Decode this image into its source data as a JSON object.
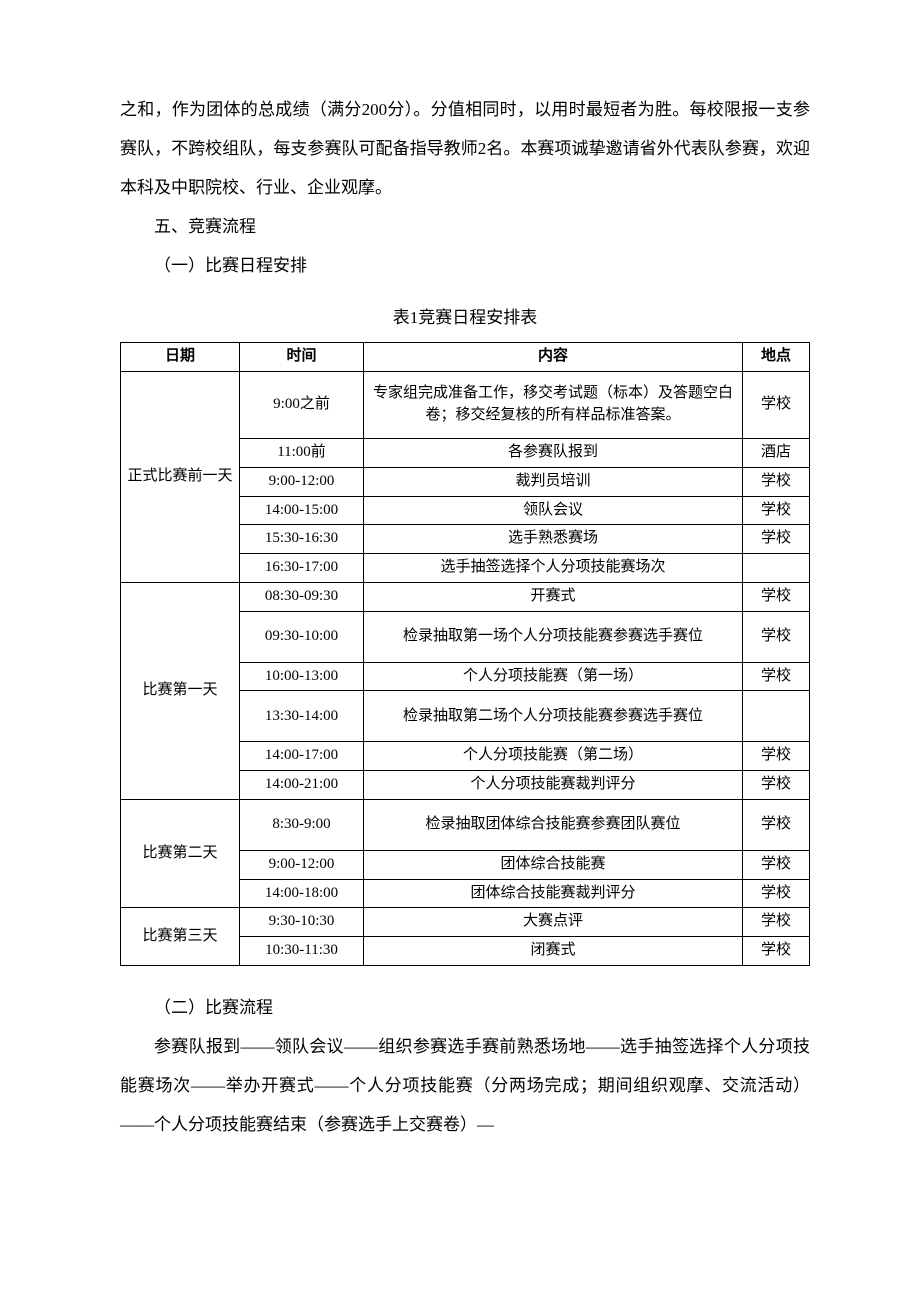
{
  "para1": "之和，作为团体的总成绩（满分200分）。分值相同时，以用时最短者为胜。每校限报一支参赛队，不跨校组队，每支参赛队可配备指导教师2名。本赛项诚挚邀请省外代表队参赛，欢迎本科及中职院校、行业、企业观摩。",
  "h1": "五、竞赛流程",
  "h2": "（一）比赛日程安排",
  "tableCaption": "表1竞赛日程安排表",
  "headers": {
    "date": "日期",
    "time": "时间",
    "content": "内容",
    "loc": "地点"
  },
  "groups": [
    {
      "date": "正式比赛前一天",
      "rows": [
        {
          "time": "9:00之前",
          "content": "专家组完成准备工作，移交考试题（标本）及答题空白卷；移交经复核的所有样品标准答案。",
          "loc": "学校",
          "cls": "tall"
        },
        {
          "time": "11:00前",
          "content": "各参赛队报到",
          "loc": "酒店"
        },
        {
          "time": "9:00-12:00",
          "content": "裁判员培训",
          "loc": "学校"
        },
        {
          "time": "14:00-15:00",
          "content": "领队会议",
          "loc": "学校"
        },
        {
          "time": "15:30-16:30",
          "content": "选手熟悉赛场",
          "loc": "学校"
        },
        {
          "time": "16:30-17:00",
          "content": "选手抽签选择个人分项技能赛场次",
          "loc": ""
        }
      ]
    },
    {
      "date": "比赛第一天",
      "rows": [
        {
          "time": "08:30-09:30",
          "content": "开赛式",
          "loc": "学校"
        },
        {
          "time": "09:30-10:00",
          "content": "检录抽取第一场个人分项技能赛参赛选手赛位",
          "loc": "学校",
          "cls": "med"
        },
        {
          "time": "10:00-13:00",
          "content": "个人分项技能赛（第一场）",
          "loc": "学校"
        },
        {
          "time": "13:30-14:00",
          "content": "检录抽取第二场个人分项技能赛参赛选手赛位",
          "loc": "",
          "cls": "med"
        },
        {
          "time": "14:00-17:00",
          "content": "个人分项技能赛（第二场）",
          "loc": "学校"
        },
        {
          "time": "14:00-21:00",
          "content": "个人分项技能赛裁判评分",
          "loc": "学校"
        }
      ]
    },
    {
      "date": "比赛第二天",
      "rows": [
        {
          "time": "8:30-9:00",
          "content": "检录抽取团体综合技能赛参赛团队赛位",
          "loc": "学校",
          "cls": "med"
        },
        {
          "time": "9:00-12:00",
          "content": "团体综合技能赛",
          "loc": "学校"
        },
        {
          "time": "14:00-18:00",
          "content": "团体综合技能赛裁判评分",
          "loc": "学校"
        }
      ]
    },
    {
      "date": "比赛第三天",
      "rows": [
        {
          "time": "9:30-10:30",
          "content": "大赛点评",
          "loc": "学校"
        },
        {
          "time": "10:30-11:30",
          "content": "闭赛式",
          "loc": "学校"
        }
      ]
    }
  ],
  "h3": "（二）比赛流程",
  "para2": "参赛队报到——领队会议——组织参赛选手赛前熟悉场地——选手抽签选择个人分项技能赛场次——举办开赛式——个人分项技能赛（分两场完成；期间组织观摩、交流活动）——个人分项技能赛结束（参赛选手上交赛卷）—"
}
